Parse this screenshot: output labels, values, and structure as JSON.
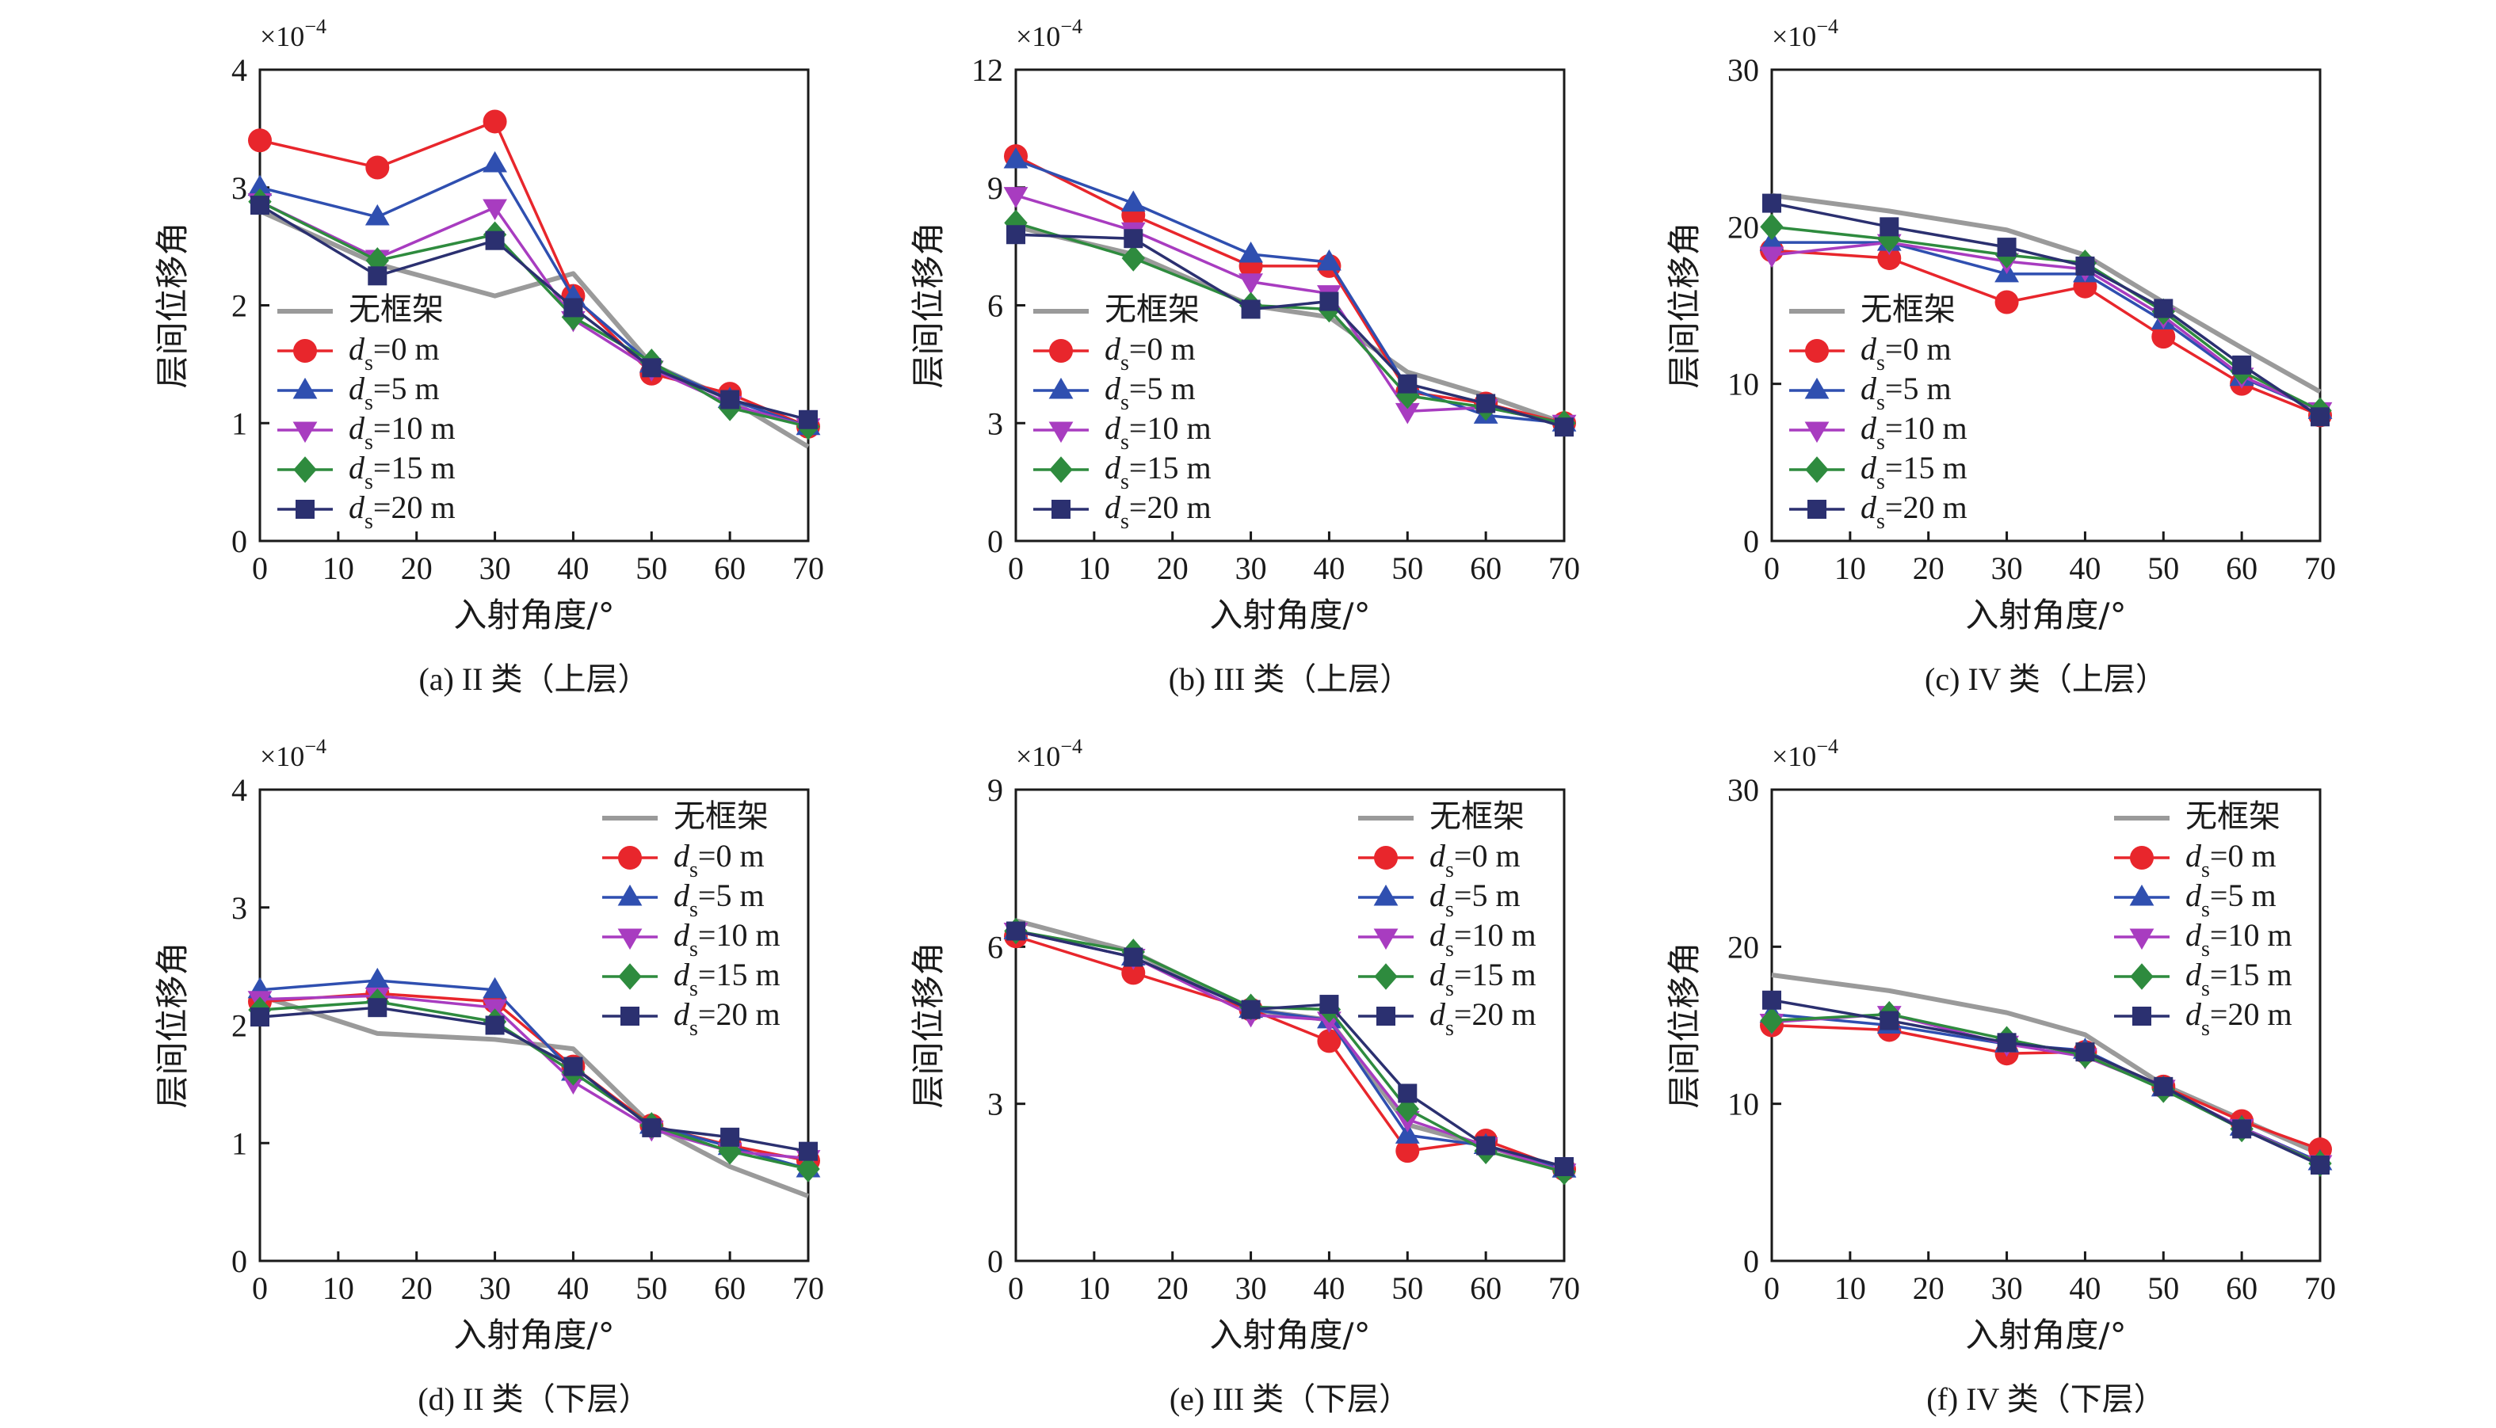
{
  "legend_labels": {
    "none": "无框架",
    "d0": "ds=0 m",
    "d5": "ds=5 m",
    "d10": "ds=10 m",
    "d15": "ds=15 m",
    "d20": "ds=20 m"
  },
  "series_styles": [
    {
      "key": "none",
      "color": "#9a9a9a",
      "marker": "none"
    },
    {
      "key": "d0",
      "color": "#e8262c",
      "marker": "circle"
    },
    {
      "key": "d5",
      "color": "#2f4fb0",
      "marker": "triangle-up"
    },
    {
      "key": "d10",
      "color": "#a83cc0",
      "marker": "triangle-down"
    },
    {
      "key": "d15",
      "color": "#2e8b3e",
      "marker": "diamond"
    },
    {
      "key": "d20",
      "color": "#2b3070",
      "marker": "square"
    }
  ],
  "chart_data": [
    {
      "type": "line",
      "caption": "(a)  II 类（上层）",
      "xlabel": "入射角度/°",
      "ylabel": "层间位移角",
      "multiplier": "×10",
      "multiplier_exp": "−4",
      "x": [
        0,
        15,
        30,
        40,
        50,
        60,
        70
      ],
      "xlim": [
        0,
        70
      ],
      "xticks": [
        0,
        10,
        20,
        30,
        40,
        50,
        60,
        70
      ],
      "ylim": [
        0,
        4
      ],
      "yticks": [
        0,
        1,
        2,
        3,
        4
      ],
      "legend_position": "bottom-left",
      "series": [
        {
          "key": "none",
          "values": [
            2.8,
            2.35,
            2.08,
            2.27,
            1.5,
            1.2,
            0.8
          ]
        },
        {
          "key": "d0",
          "values": [
            3.4,
            3.17,
            3.56,
            2.08,
            1.42,
            1.25,
            0.97
          ]
        },
        {
          "key": "d5",
          "values": [
            3.0,
            2.75,
            3.2,
            2.07,
            1.5,
            1.2,
            0.97
          ]
        },
        {
          "key": "d10",
          "values": [
            2.88,
            2.4,
            2.83,
            1.88,
            1.46,
            1.16,
            0.97
          ]
        },
        {
          "key": "d15",
          "values": [
            2.88,
            2.38,
            2.6,
            1.9,
            1.52,
            1.13,
            0.97
          ]
        },
        {
          "key": "d20",
          "values": [
            2.85,
            2.25,
            2.55,
            1.98,
            1.47,
            1.2,
            1.03
          ]
        }
      ]
    },
    {
      "type": "line",
      "caption": "(b)  III 类（上层）",
      "xlabel": "入射角度/°",
      "ylabel": "层间位移角",
      "multiplier": "×10",
      "multiplier_exp": "−4",
      "x": [
        0,
        15,
        30,
        40,
        50,
        60,
        70
      ],
      "xlim": [
        0,
        70
      ],
      "xticks": [
        0,
        10,
        20,
        30,
        40,
        50,
        60,
        70
      ],
      "ylim": [
        0,
        12
      ],
      "yticks": [
        0,
        3,
        6,
        9,
        12
      ],
      "legend_position": "bottom-left",
      "series": [
        {
          "key": "none",
          "values": [
            8.0,
            7.3,
            6.0,
            5.7,
            4.3,
            3.7,
            3.0
          ]
        },
        {
          "key": "d0",
          "values": [
            9.8,
            8.3,
            7.0,
            7.0,
            3.8,
            3.5,
            3.0
          ]
        },
        {
          "key": "d5",
          "values": [
            9.7,
            8.6,
            7.3,
            7.1,
            3.9,
            3.2,
            3.0
          ]
        },
        {
          "key": "d10",
          "values": [
            8.8,
            7.9,
            6.6,
            6.3,
            3.3,
            3.4,
            3.0
          ]
        },
        {
          "key": "d15",
          "values": [
            8.1,
            7.2,
            6.0,
            5.9,
            3.7,
            3.4,
            3.0
          ]
        },
        {
          "key": "d20",
          "values": [
            7.8,
            7.7,
            5.9,
            6.1,
            4.0,
            3.5,
            2.9
          ]
        }
      ]
    },
    {
      "type": "line",
      "caption": "(c)  IV 类（上层）",
      "xlabel": "入射角度/°",
      "ylabel": "层间位移角",
      "multiplier": "×10",
      "multiplier_exp": "−4",
      "x": [
        0,
        15,
        30,
        40,
        50,
        60,
        70
      ],
      "xlim": [
        0,
        70
      ],
      "xticks": [
        0,
        10,
        20,
        30,
        40,
        50,
        60,
        70
      ],
      "ylim": [
        0,
        30
      ],
      "yticks": [
        0,
        10,
        20,
        30
      ],
      "legend_position": "bottom-left",
      "series": [
        {
          "key": "none",
          "values": [
            22.0,
            21.0,
            19.8,
            18.2,
            15.2,
            12.3,
            9.5
          ]
        },
        {
          "key": "d0",
          "values": [
            18.5,
            18.0,
            15.2,
            16.2,
            13.0,
            10.0,
            8.0
          ]
        },
        {
          "key": "d5",
          "values": [
            19.0,
            19.0,
            17.0,
            17.0,
            14.0,
            10.4,
            8.3
          ]
        },
        {
          "key": "d10",
          "values": [
            18.2,
            19.0,
            17.8,
            17.3,
            14.3,
            10.5,
            8.3
          ]
        },
        {
          "key": "d15",
          "values": [
            20.0,
            19.2,
            18.2,
            17.7,
            14.6,
            10.8,
            8.3
          ]
        },
        {
          "key": "d20",
          "values": [
            21.5,
            20.0,
            18.7,
            17.5,
            14.8,
            11.2,
            7.9
          ]
        }
      ]
    },
    {
      "type": "line",
      "caption": "(d)  II 类（下层）",
      "xlabel": "入射角度/°",
      "ylabel": "层间位移角",
      "multiplier": "×10",
      "multiplier_exp": "−4",
      "x": [
        0,
        15,
        30,
        40,
        50,
        60,
        70
      ],
      "xlim": [
        0,
        70
      ],
      "xticks": [
        0,
        10,
        20,
        30,
        40,
        50,
        60,
        70
      ],
      "ylim": [
        0,
        4
      ],
      "yticks": [
        0,
        1,
        2,
        3,
        4
      ],
      "legend_position": "top-right",
      "series": [
        {
          "key": "none",
          "values": [
            2.25,
            1.93,
            1.88,
            1.8,
            1.15,
            0.8,
            0.55
          ]
        },
        {
          "key": "d0",
          "values": [
            2.2,
            2.27,
            2.2,
            1.65,
            1.15,
            0.98,
            0.85
          ]
        },
        {
          "key": "d5",
          "values": [
            2.3,
            2.38,
            2.3,
            1.6,
            1.15,
            0.97,
            0.78
          ]
        },
        {
          "key": "d10",
          "values": [
            2.22,
            2.25,
            2.15,
            1.52,
            1.12,
            0.93,
            0.87
          ]
        },
        {
          "key": "d15",
          "values": [
            2.13,
            2.2,
            2.03,
            1.6,
            1.15,
            0.93,
            0.78
          ]
        },
        {
          "key": "d20",
          "values": [
            2.07,
            2.15,
            2.0,
            1.65,
            1.13,
            1.05,
            0.93
          ]
        }
      ]
    },
    {
      "type": "line",
      "caption": "(e)  III 类（下层）",
      "xlabel": "入射角度/°",
      "ylabel": "层间位移角",
      "multiplier": "×10",
      "multiplier_exp": "−4",
      "x": [
        0,
        15,
        30,
        40,
        50,
        60,
        70
      ],
      "xlim": [
        0,
        70
      ],
      "xticks": [
        0,
        10,
        20,
        30,
        40,
        50,
        60,
        70
      ],
      "ylim": [
        0,
        9
      ],
      "yticks": [
        0,
        3,
        6,
        9
      ],
      "legend_position": "top-right",
      "series": [
        {
          "key": "none",
          "values": [
            6.5,
            5.9,
            4.8,
            4.6,
            2.6,
            2.2,
            1.7
          ]
        },
        {
          "key": "d0",
          "values": [
            6.2,
            5.5,
            4.8,
            4.2,
            2.1,
            2.3,
            1.75
          ]
        },
        {
          "key": "d5",
          "values": [
            6.3,
            5.8,
            4.8,
            4.6,
            2.4,
            2.2,
            1.75
          ]
        },
        {
          "key": "d10",
          "values": [
            6.3,
            5.8,
            4.7,
            4.6,
            2.7,
            2.2,
            1.7
          ]
        },
        {
          "key": "d15",
          "values": [
            6.3,
            5.9,
            4.85,
            4.8,
            2.9,
            2.1,
            1.7
          ]
        },
        {
          "key": "d20",
          "values": [
            6.3,
            5.8,
            4.8,
            4.9,
            3.2,
            2.2,
            1.8
          ]
        }
      ]
    },
    {
      "type": "line",
      "caption": "(f)  IV 类（下层）",
      "xlabel": "入射角度/°",
      "ylabel": "层间位移角",
      "multiplier": "×10",
      "multiplier_exp": "−4",
      "x": [
        0,
        15,
        30,
        40,
        50,
        60,
        70
      ],
      "xlim": [
        0,
        70
      ],
      "xticks": [
        0,
        10,
        20,
        30,
        40,
        50,
        60,
        70
      ],
      "ylim": [
        0,
        30
      ],
      "yticks": [
        0,
        10,
        20,
        30
      ],
      "legend_position": "top-right",
      "series": [
        {
          "key": "none",
          "values": [
            18.2,
            17.2,
            15.8,
            14.4,
            11.2,
            9.0,
            6.8
          ]
        },
        {
          "key": "d0",
          "values": [
            15.0,
            14.7,
            13.2,
            13.3,
            11.1,
            8.9,
            7.1
          ]
        },
        {
          "key": "d5",
          "values": [
            15.7,
            15.0,
            13.8,
            13.4,
            11.0,
            8.5,
            6.3
          ]
        },
        {
          "key": "d10",
          "values": [
            15.2,
            15.7,
            13.8,
            13.0,
            11.0,
            8.5,
            6.2
          ]
        },
        {
          "key": "d15",
          "values": [
            15.3,
            15.7,
            14.1,
            13.1,
            10.9,
            8.4,
            6.2
          ]
        },
        {
          "key": "d20",
          "values": [
            16.6,
            15.3,
            13.9,
            13.3,
            11.1,
            8.4,
            6.1
          ]
        }
      ]
    }
  ]
}
